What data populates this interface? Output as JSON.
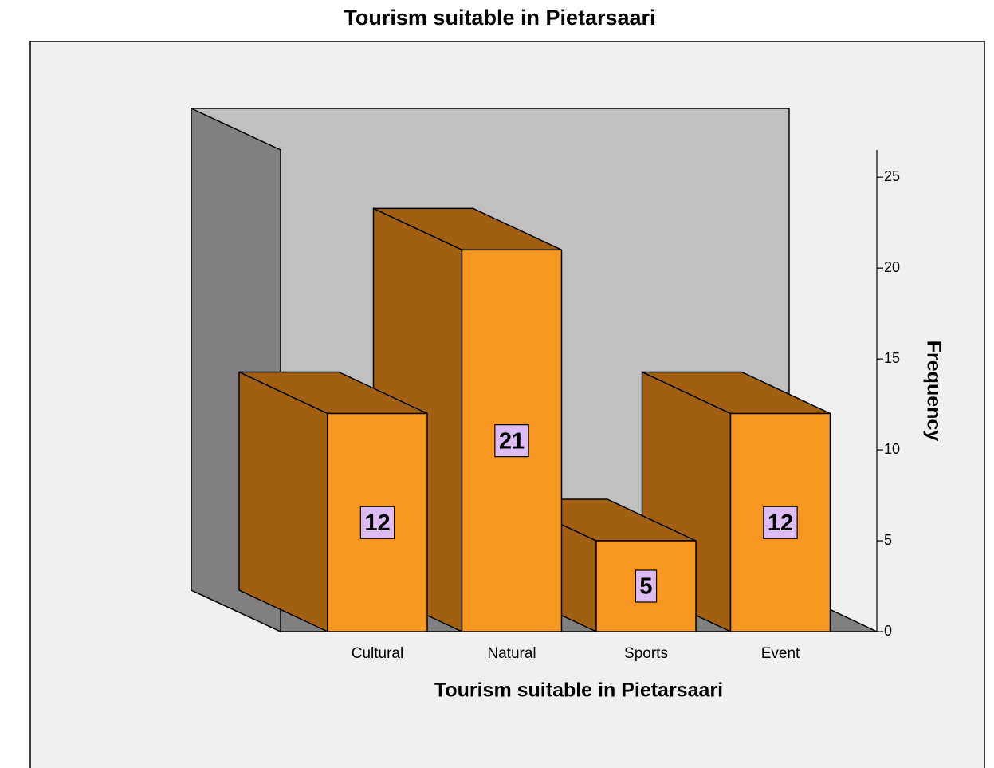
{
  "chart_data": {
    "type": "bar3d",
    "title": "Tourism suitable in Pietarsaari",
    "x_label": "Tourism suitable in Pietarsaari",
    "y_label": "Frequency",
    "categories": [
      "Cultural",
      "Natural",
      "Sports",
      "Event"
    ],
    "values": [
      12,
      21,
      5,
      12
    ],
    "color": "#f7971f",
    "ylim": [
      0,
      26.5
    ],
    "yticks": [
      0,
      5,
      10,
      15,
      20,
      25
    ]
  }
}
